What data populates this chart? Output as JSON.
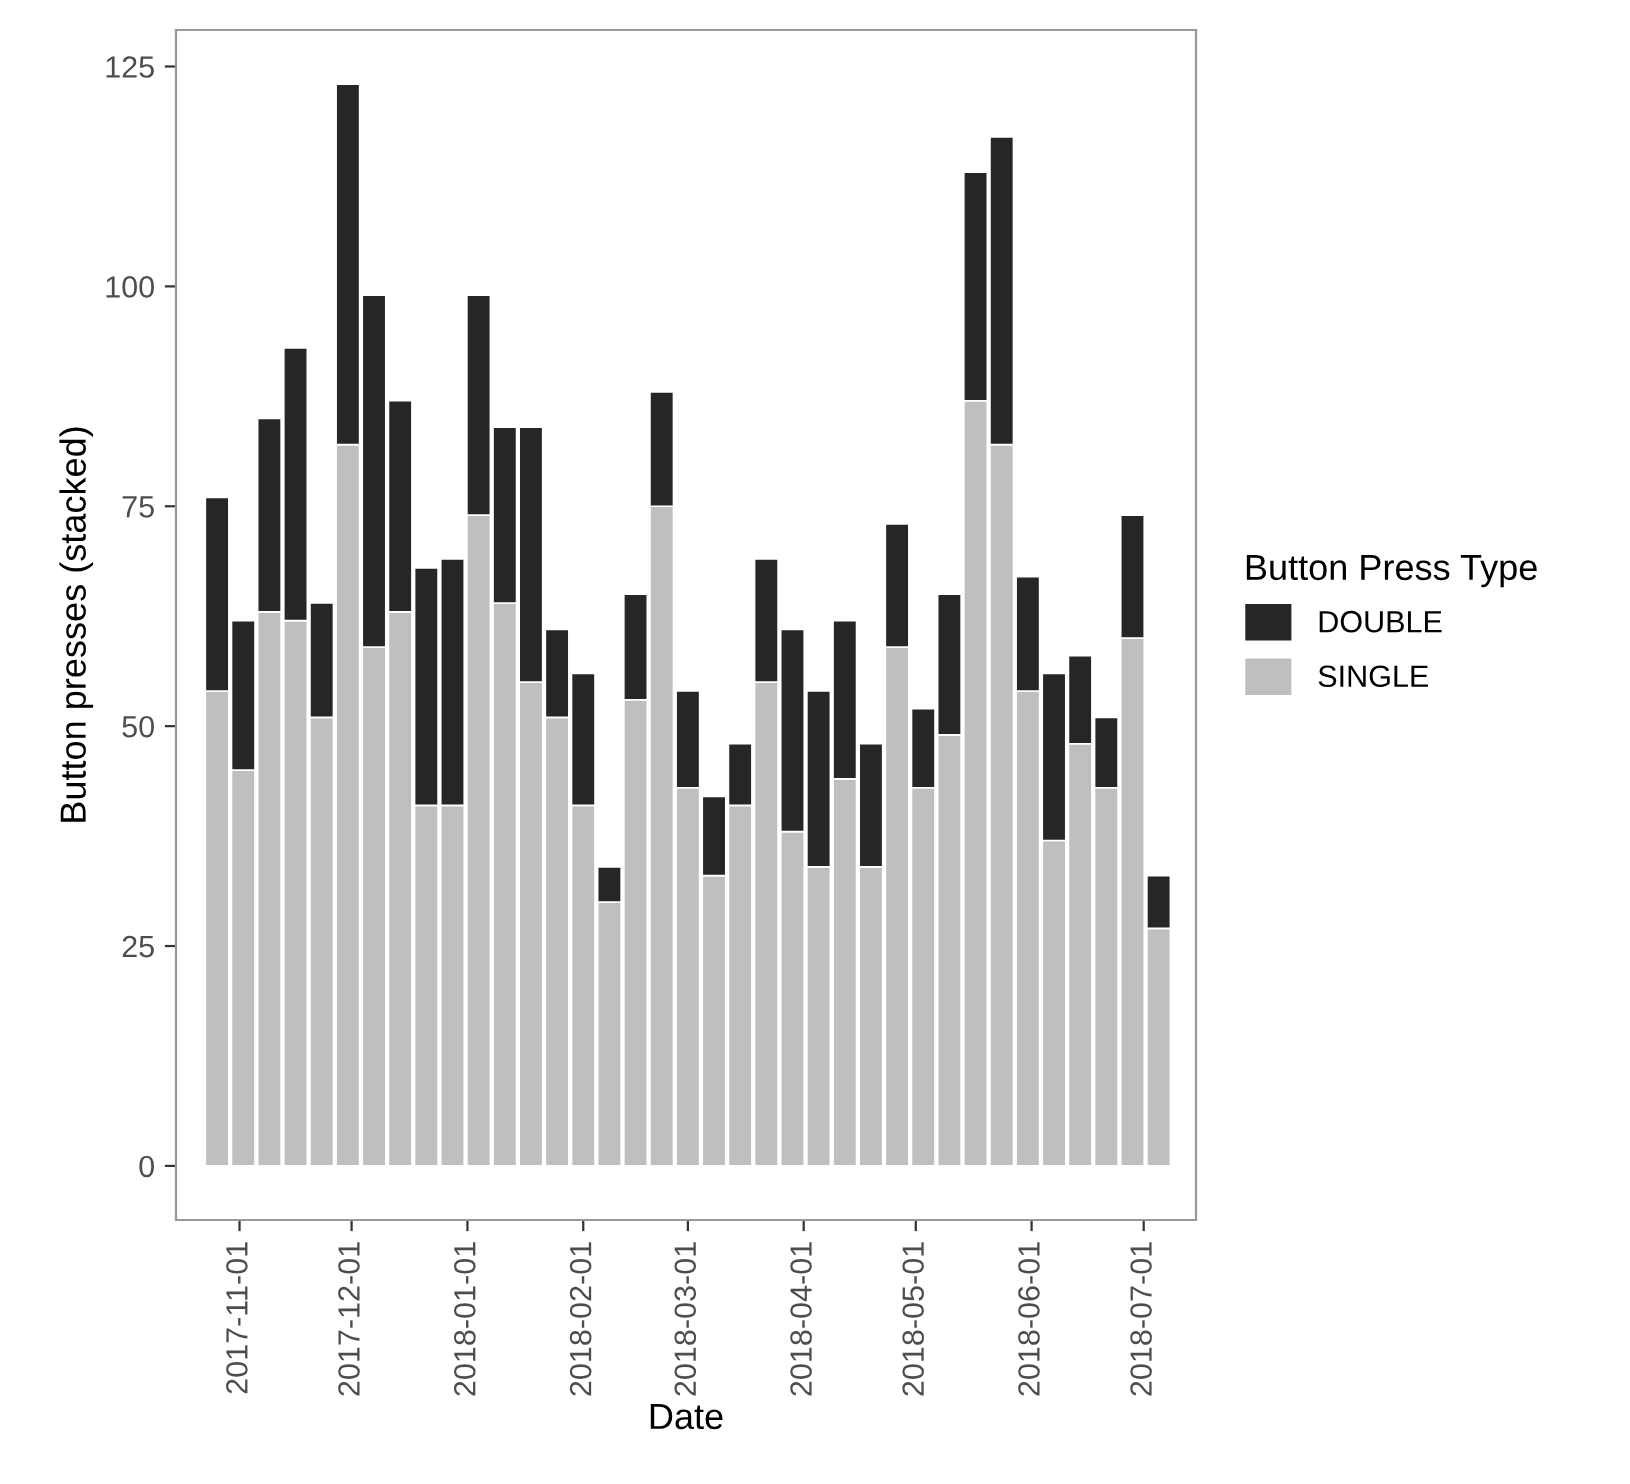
{
  "chart_data": {
    "type": "bar",
    "stacked": true,
    "xlabel": "Date",
    "ylabel": "Button presses (stacked)",
    "legend_title": "Button Press Type",
    "legend": "right",
    "grid": false,
    "x": [
      "2017-10-26",
      "2017-11-02",
      "2017-11-09",
      "2017-11-16",
      "2017-11-23",
      "2017-11-30",
      "2017-12-07",
      "2017-12-14",
      "2017-12-21",
      "2017-12-28",
      "2018-01-04",
      "2018-01-11",
      "2018-01-18",
      "2018-01-25",
      "2018-02-01",
      "2018-02-08",
      "2018-02-15",
      "2018-02-22",
      "2018-03-01",
      "2018-03-08",
      "2018-03-15",
      "2018-03-22",
      "2018-03-29",
      "2018-04-05",
      "2018-04-12",
      "2018-04-19",
      "2018-04-26",
      "2018-05-03",
      "2018-05-10",
      "2018-05-17",
      "2018-05-24",
      "2018-05-31",
      "2018-06-07",
      "2018-06-14",
      "2018-06-21",
      "2018-06-28",
      "2018-07-05"
    ],
    "series": [
      {
        "name": "SINGLE",
        "color": "#bfbfbf",
        "values": [
          54,
          45,
          63,
          62,
          51,
          82,
          59,
          63,
          41,
          41,
          74,
          64,
          55,
          51,
          41,
          30,
          53,
          75,
          43,
          33,
          41,
          55,
          38,
          34,
          44,
          34,
          59,
          43,
          49,
          87,
          82,
          54,
          37,
          48,
          43,
          60,
          27
        ]
      },
      {
        "name": "DOUBLE",
        "color": "#262626",
        "values": [
          22,
          17,
          22,
          31,
          13,
          41,
          40,
          24,
          27,
          28,
          25,
          20,
          29,
          10,
          15,
          4,
          12,
          13,
          11,
          9,
          7,
          14,
          23,
          20,
          18,
          14,
          14,
          9,
          16,
          26,
          35,
          13,
          19,
          10,
          8,
          14,
          6
        ]
      }
    ],
    "xlim": [
      "2017-10-15",
      "2018-07-15"
    ],
    "xticks": [
      "2017-11-01",
      "2017-12-01",
      "2018-01-01",
      "2018-02-01",
      "2018-03-01",
      "2018-04-01",
      "2018-05-01",
      "2018-06-01",
      "2018-07-01"
    ],
    "ylim": [
      -6.15,
      129.15
    ],
    "yticks": [
      0,
      25,
      50,
      75,
      100,
      125
    ]
  }
}
